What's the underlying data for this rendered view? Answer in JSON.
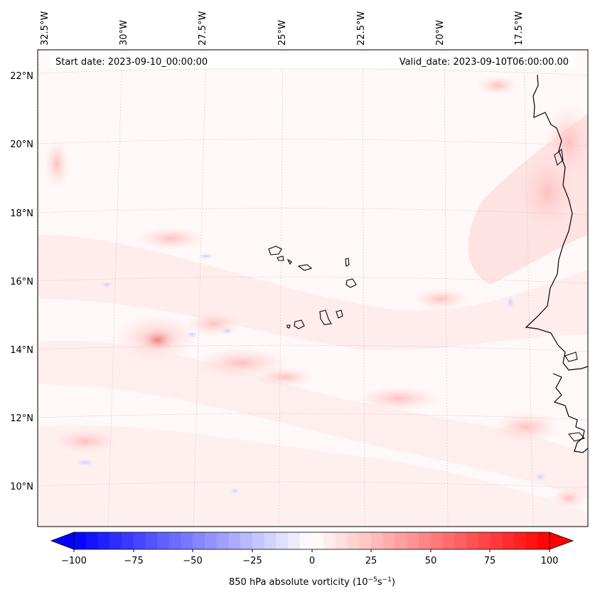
{
  "header": {
    "start_date": "Start date: 2023-09-10_00:00:00",
    "valid_date": "Valid_date: 2023-09-10T06:00:00.00"
  },
  "axes": {
    "lon_labels": [
      "32.5°W",
      "30°W",
      "27.5°W",
      "25°W",
      "22.5°W",
      "20°W",
      "17.5°W"
    ],
    "lat_labels": [
      "22°N",
      "20°N",
      "18°N",
      "16°N",
      "14°N",
      "12°N",
      "10°N"
    ]
  },
  "colorbar": {
    "ticks": [
      "−100",
      "−75",
      "−50",
      "−25",
      "0",
      "25",
      "50",
      "75",
      "100"
    ],
    "label": "850 hPa absolute vorticity (10",
    "label_sup1": "−5",
    "label_mid": "s",
    "label_sup2": "−1",
    "label_end": ")",
    "min_color": "#0000ff",
    "mid_color": "#ffffff",
    "max_color": "#ff0000"
  }
}
